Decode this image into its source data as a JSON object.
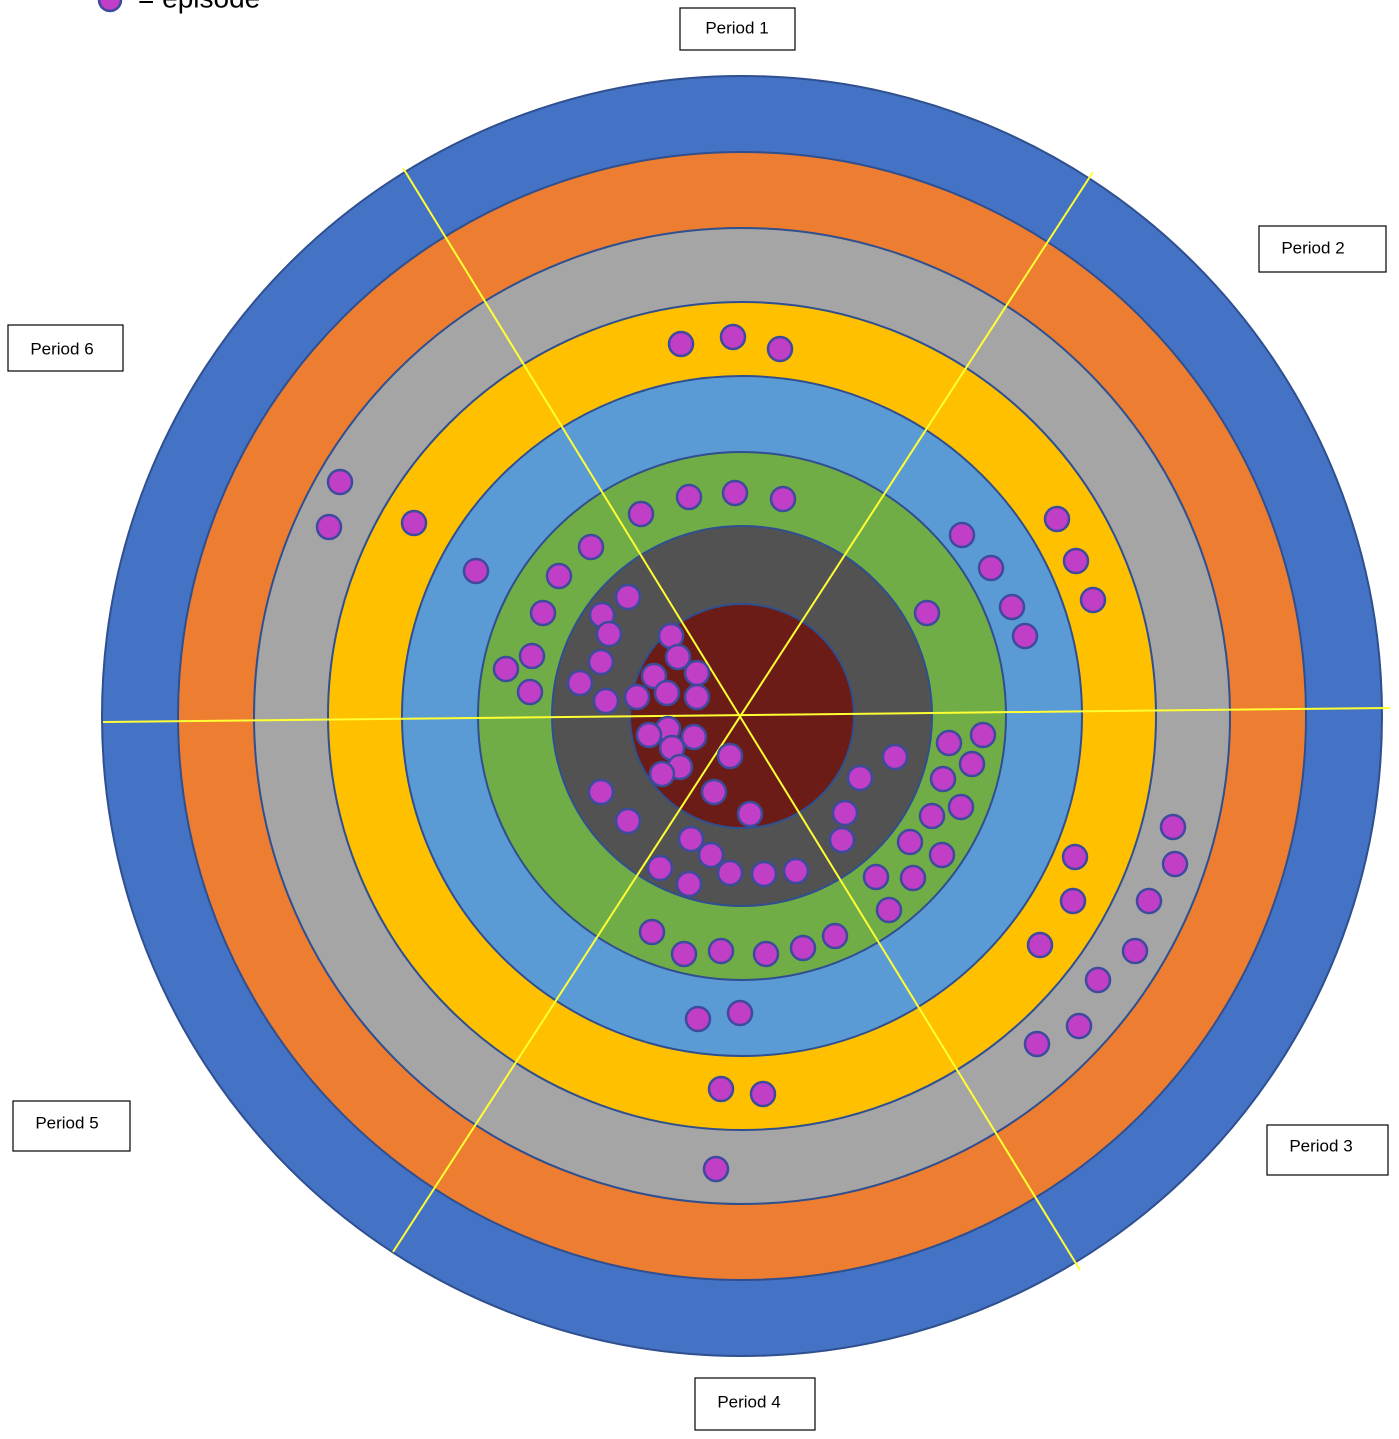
{
  "legend": {
    "label": "= episode"
  },
  "periods": [
    "Period 1",
    "Period 2",
    "Period 3",
    "Period 4",
    "Period 5",
    "Period 6"
  ]
}
